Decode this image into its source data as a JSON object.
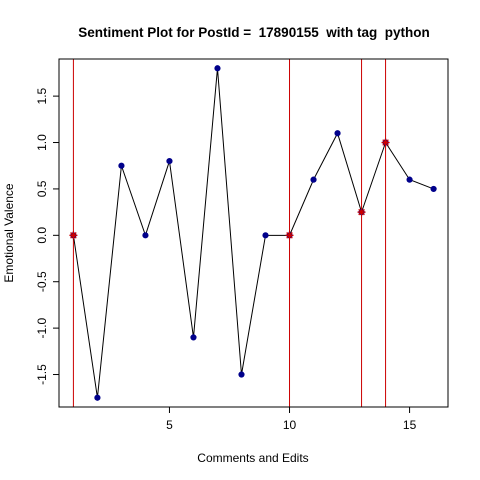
{
  "chart_data": {
    "type": "line",
    "title": "Sentiment Plot for PostId =  17890155  with tag  python",
    "xlabel": "Comments and Edits",
    "ylabel": "Emotional Valence",
    "xlim": [
      0.4,
      16.6
    ],
    "ylim": [
      -1.85,
      1.9
    ],
    "x_ticks": [
      5,
      10,
      15
    ],
    "x_tick_labels": [
      "5",
      "10",
      "15"
    ],
    "y_ticks": [
      -1.5,
      -1.0,
      -0.5,
      0.0,
      0.5,
      1.0,
      1.5
    ],
    "y_tick_labels": [
      "-1.5",
      "-1.0",
      "-0.5",
      "0.0",
      "0.5",
      "1.0",
      "1.5"
    ],
    "grid": false,
    "series": [
      {
        "x": [
          1,
          2,
          3,
          4,
          5,
          6,
          7,
          8,
          9,
          10,
          11,
          12,
          13,
          14,
          15,
          16
        ],
        "values": [
          0,
          -1.75,
          0.75,
          0,
          0.8,
          -1.1,
          1.8,
          -1.5,
          0,
          0,
          0.6,
          1.1,
          0.25,
          1.0,
          0.6,
          0.5
        ],
        "line_color": "#000000",
        "point_color": "#00008b"
      }
    ],
    "highlight_points": {
      "x": [
        1,
        10,
        13,
        14
      ],
      "values": [
        0,
        0,
        0.25,
        1.0
      ],
      "color": "#cc0000"
    },
    "vertical_lines": {
      "x": [
        1,
        10,
        13,
        14
      ],
      "color": "#cc0000"
    }
  }
}
